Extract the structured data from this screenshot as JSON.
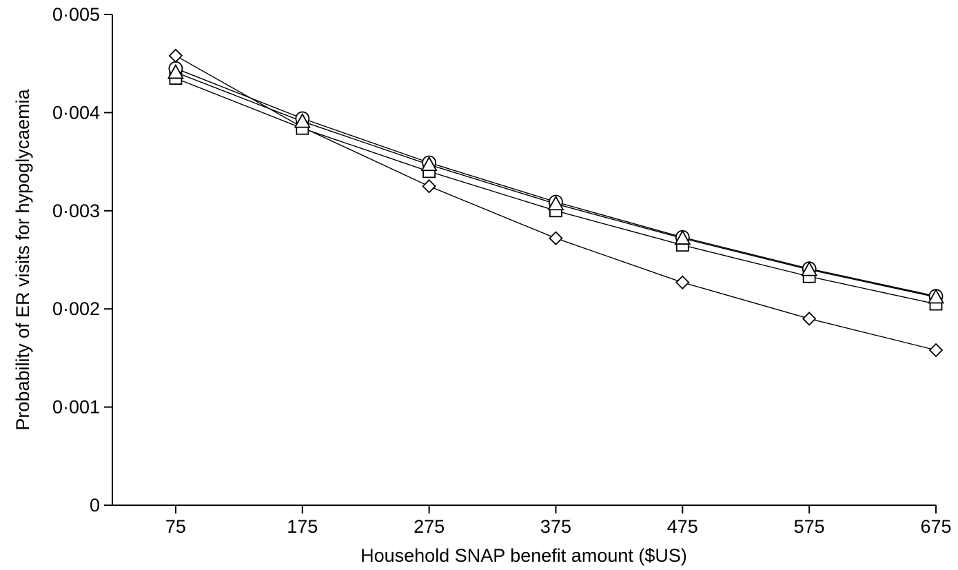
{
  "chart_data": {
    "type": "line",
    "title": "",
    "xlabel": "Household SNAP benefit amount ($US)",
    "ylabel": "Probability of ER visits for hypoglycaemia",
    "x": [
      75,
      175,
      275,
      375,
      475,
      575,
      675
    ],
    "x_tick_labels": [
      "75",
      "175",
      "275",
      "375",
      "475",
      "575",
      "675"
    ],
    "y_ticks": [
      0,
      0.001,
      0.002,
      0.003,
      0.004,
      0.005
    ],
    "y_tick_labels": [
      "0",
      "0·001",
      "0·002",
      "0·003",
      "0·004",
      "0·005"
    ],
    "ylim": [
      0,
      0.005
    ],
    "xlim": [
      25,
      675
    ],
    "grid": false,
    "series": [
      {
        "marker": "diamond",
        "values": [
          0.00458,
          0.00385,
          0.00325,
          0.00272,
          0.00227,
          0.0019,
          0.00158
        ]
      },
      {
        "marker": "square",
        "values": [
          0.00435,
          0.00384,
          0.0034,
          0.003,
          0.00265,
          0.00233,
          0.00205
        ]
      },
      {
        "marker": "circle",
        "values": [
          0.00445,
          0.00394,
          0.00349,
          0.00309,
          0.00273,
          0.00241,
          0.00213
        ]
      },
      {
        "marker": "triangle",
        "values": [
          0.00441,
          0.00391,
          0.00347,
          0.00307,
          0.00272,
          0.0024,
          0.00212
        ]
      }
    ]
  }
}
